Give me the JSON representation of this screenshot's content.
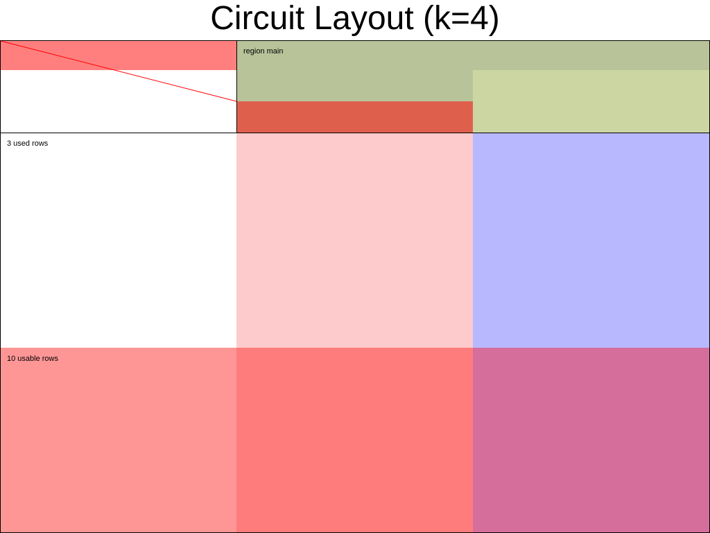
{
  "title": "Circuit Layout (k=4)",
  "labels": {
    "region": "region main",
    "used_rows": "3 used rows",
    "usable_rows": "10 usable rows"
  },
  "colors": {
    "top_left_strip": "#ff7f7f",
    "region_main": "#b9c399",
    "region_main_lower": "#de604c",
    "region_right_lower": "#ccd6a3",
    "middle_column_pink": "#fdcbcb",
    "right_column_blue": "#b8b8ff",
    "bottom_left": "#fe9696",
    "bottom_middle": "#ff7c7c",
    "bottom_right": "#d66e9c",
    "diagonal_line": "#ff0000",
    "outline": "#000000"
  }
}
